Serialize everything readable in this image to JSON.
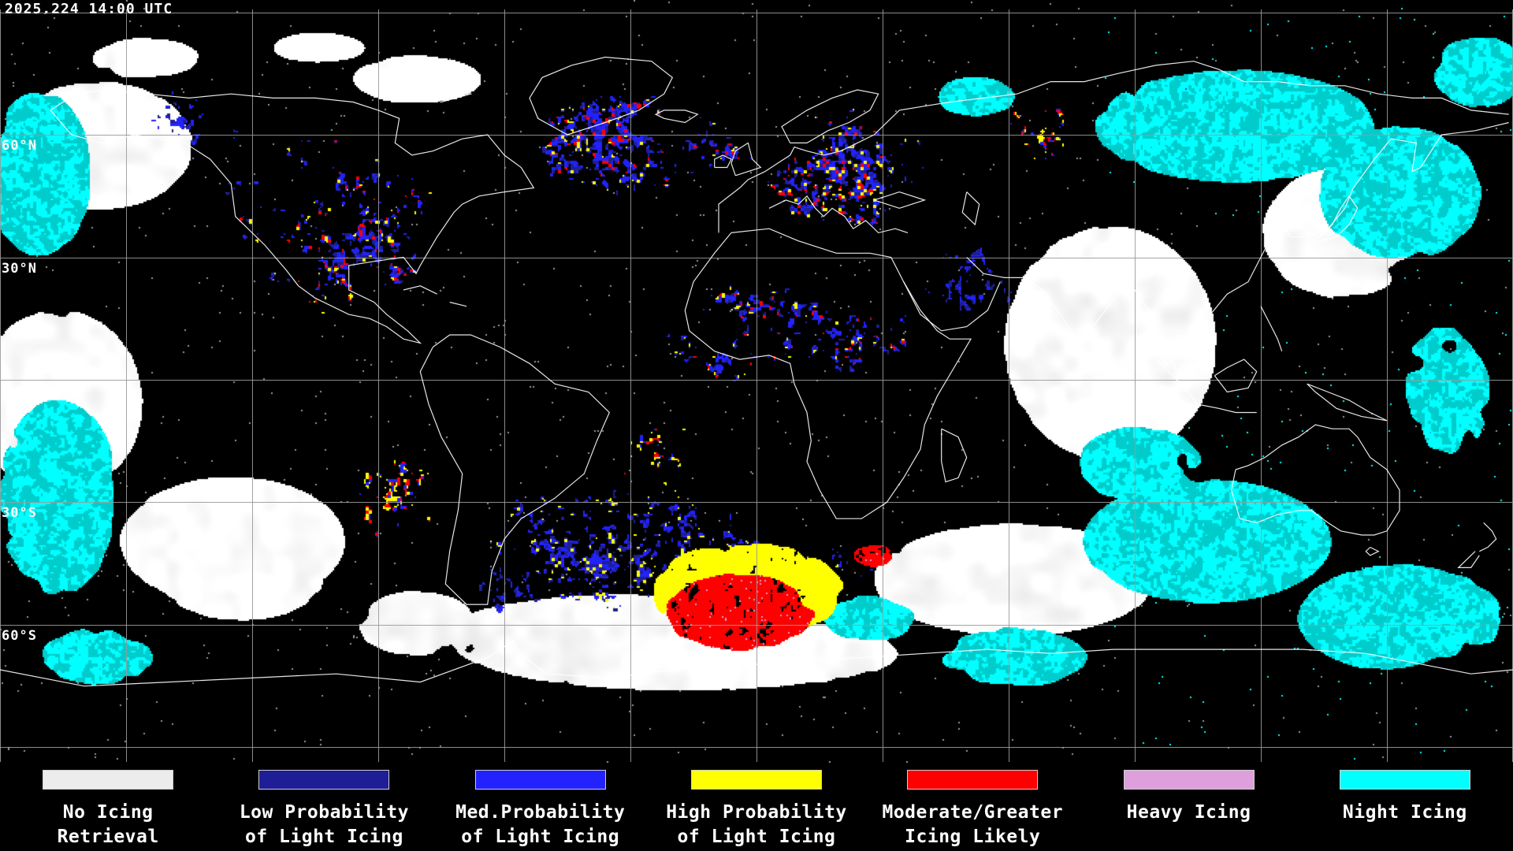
{
  "header": {
    "timestamp": "2025.224 14:00 UTC"
  },
  "map": {
    "latitude_labels": [
      {
        "text": "60°N",
        "lat": 60
      },
      {
        "text": "30°N",
        "lat": 30
      },
      {
        "text": "30°S",
        "lat": -30
      },
      {
        "text": "60°S",
        "lat": -60
      }
    ],
    "grid": {
      "lat_lines_deg": [
        90,
        60,
        30,
        0,
        -30,
        -60,
        -90
      ],
      "lon_step_deg": 30
    }
  },
  "legend": {
    "items": [
      {
        "name": "no-icing-retrieval",
        "label_line1": "No Icing",
        "label_line2": "Retrieval",
        "color": "#ececec"
      },
      {
        "name": "low-probability-light-icing",
        "label_line1": "Low Probability",
        "label_line2": "of Light Icing",
        "color": "#1e1e96"
      },
      {
        "name": "med-probability-light-icing",
        "label_line1": "Med.Probability",
        "label_line2": "of Light Icing",
        "color": "#2222ff"
      },
      {
        "name": "high-probability-light-icing",
        "label_line1": "High Probability",
        "label_line2": "of Light Icing",
        "color": "#ffff00"
      },
      {
        "name": "moderate-greater-icing-likely",
        "label_line1": "Moderate/Greater",
        "label_line2": "Icing Likely",
        "color": "#ff0000"
      },
      {
        "name": "heavy-icing",
        "label_line1": "Heavy Icing",
        "label_line2": "",
        "color": "#dda0dd"
      },
      {
        "name": "night-icing",
        "label_line1": "Night Icing",
        "label_line2": "",
        "color": "#00ffff"
      }
    ]
  }
}
